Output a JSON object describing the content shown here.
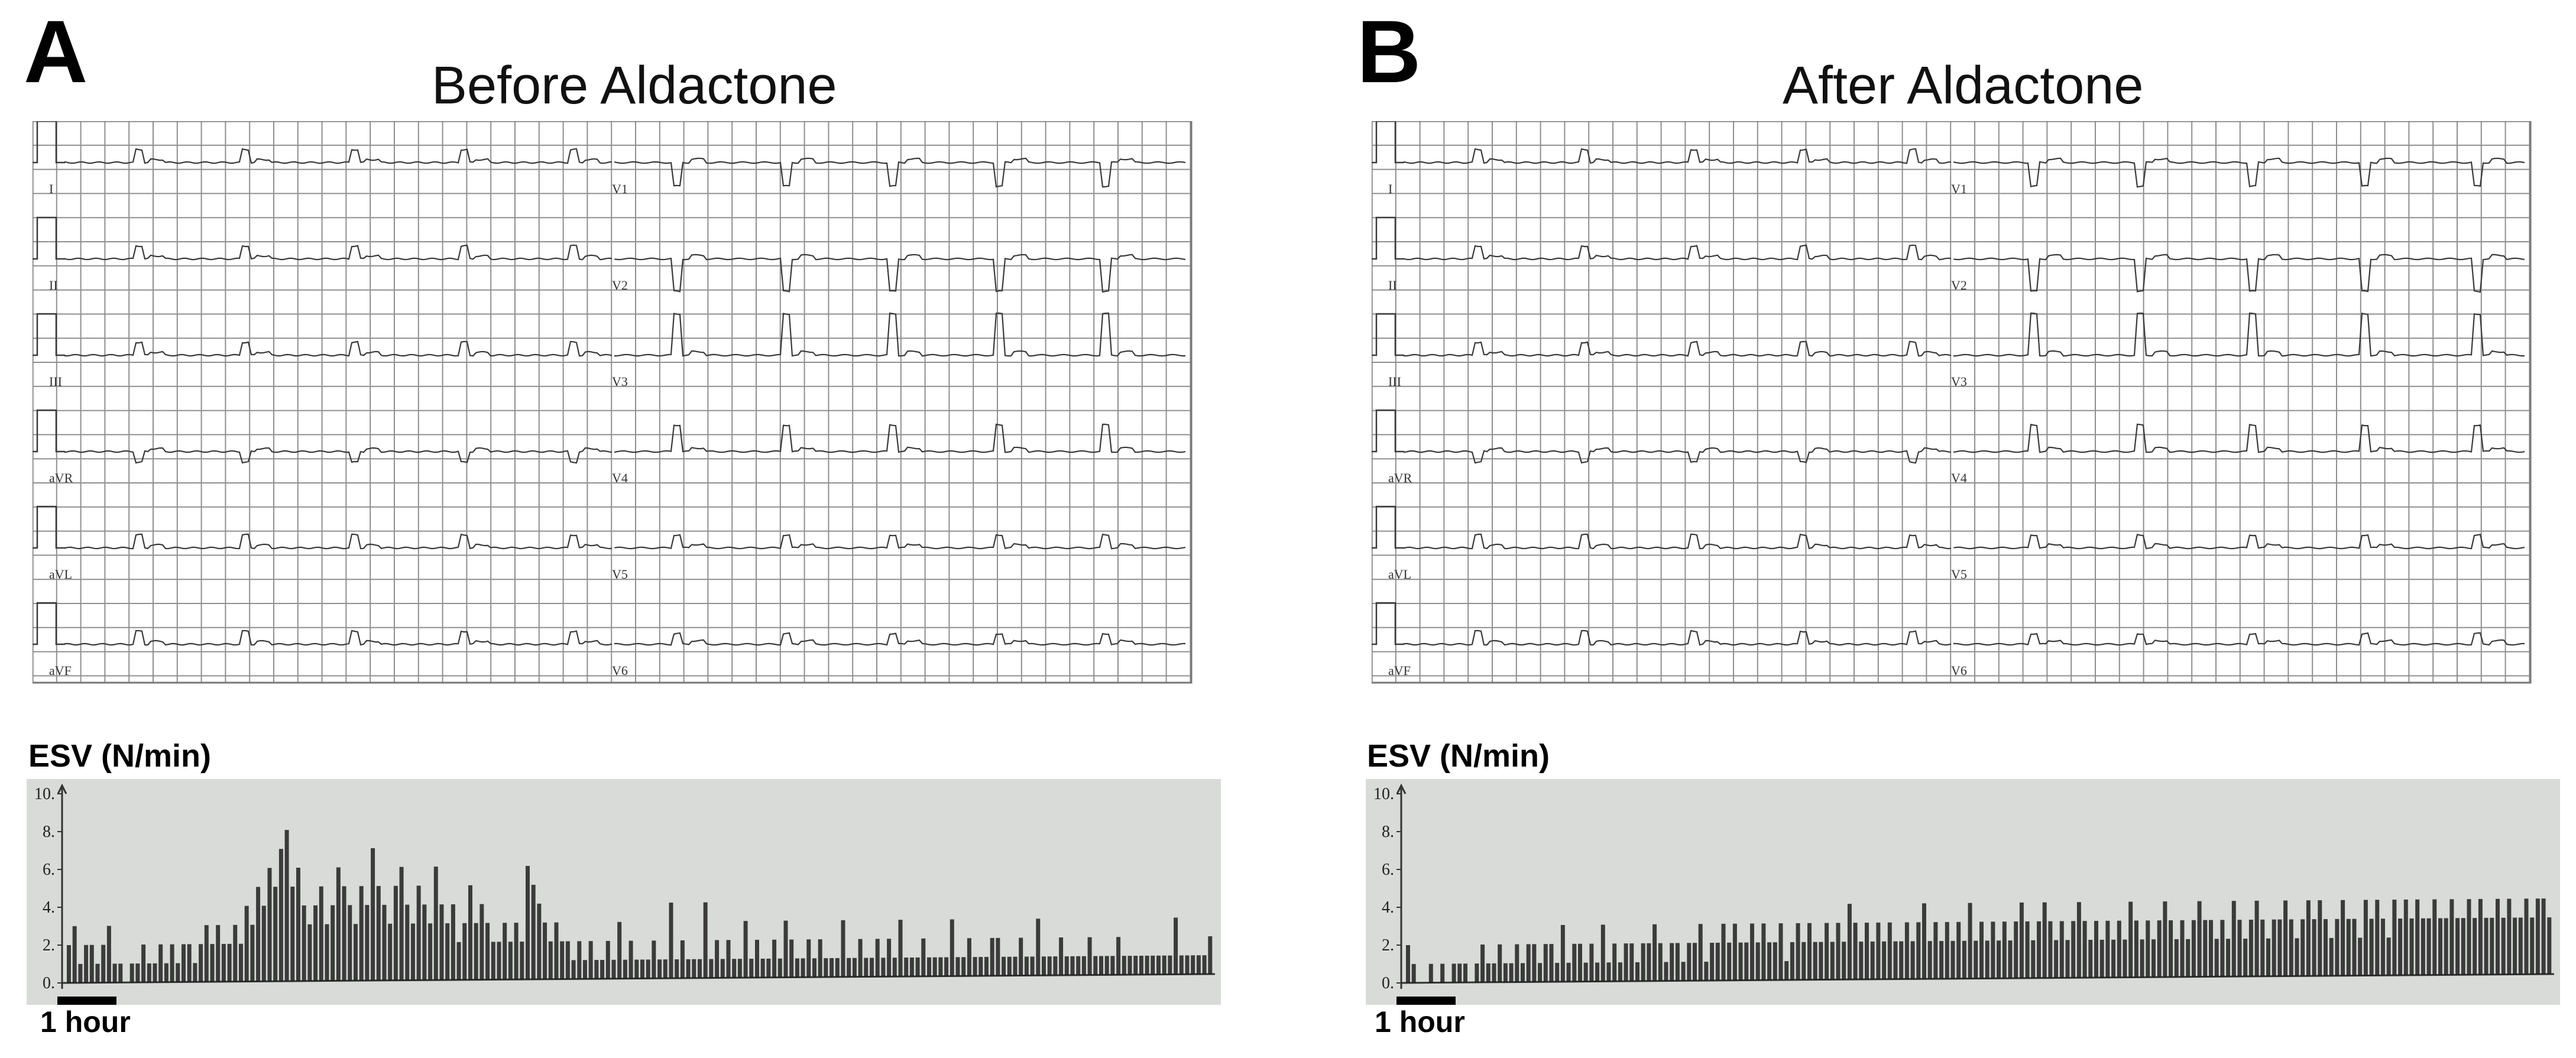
{
  "panels": [
    {
      "letter": "A",
      "title": "Before Aldactone",
      "ecg_leads_left": [
        "I",
        "II",
        "III",
        "aVR",
        "aVL",
        "aVF"
      ],
      "ecg_leads_right": [
        "V1",
        "V2",
        "V3",
        "V4",
        "V5",
        "V6"
      ],
      "esv_label": "ESV (N/min)",
      "scale_bar_label": "1 hour"
    },
    {
      "letter": "B",
      "title": "After Aldactone",
      "ecg_leads_left": [
        "I",
        "II",
        "III",
        "aVR",
        "aVL",
        "aVF"
      ],
      "ecg_leads_right": [
        "V1",
        "V2",
        "V3",
        "V4",
        "V5",
        "V6"
      ],
      "esv_label": "ESV (N/min)",
      "scale_bar_label": "1 hour"
    }
  ],
  "colors": {
    "grid": "#8f8f8f",
    "trace": "#3a3a3a",
    "esv_background": "#d8dbd8",
    "esv_bars": "#1e1e1e"
  },
  "chart_data": [
    {
      "type": "bar",
      "panel": "A",
      "ylabel": "ESV (N/min)",
      "ylim": [
        0,
        10
      ],
      "yticks": [
        "0.",
        "2.",
        "4.",
        "6.",
        "8.",
        "10."
      ],
      "series": [
        {
          "values": [
            2,
            3,
            1,
            2,
            2,
            1,
            2,
            3,
            1,
            1,
            0,
            1,
            1,
            2,
            1,
            1,
            2,
            1,
            2,
            1,
            2,
            2,
            1,
            2,
            3,
            2,
            3,
            2,
            2,
            3,
            2,
            4,
            3,
            5,
            4,
            6,
            5,
            7,
            8,
            5,
            6,
            4,
            3,
            4,
            5,
            3,
            4,
            6,
            5,
            4,
            3,
            5,
            4,
            7,
            5,
            4,
            3,
            5,
            6,
            4,
            3,
            5,
            4,
            3,
            6,
            4,
            3,
            4,
            2,
            3,
            5,
            3,
            4,
            3,
            2,
            2,
            3,
            2,
            3,
            2,
            6,
            5,
            4,
            3,
            2,
            3,
            2,
            2,
            1,
            2,
            1,
            2,
            1,
            1,
            2,
            1,
            3,
            1,
            2,
            1,
            1,
            1,
            2,
            1,
            1,
            4,
            1,
            2,
            1,
            1,
            1,
            4,
            1,
            2,
            1,
            2,
            1,
            1,
            3,
            1,
            2,
            1,
            1,
            2,
            1,
            3,
            2,
            1,
            1,
            2,
            1,
            2,
            1,
            1,
            1,
            3,
            1,
            1,
            2,
            1,
            1,
            2,
            1,
            2,
            1,
            3,
            1,
            1,
            1,
            2,
            1,
            1,
            1,
            1,
            3,
            1,
            1,
            2,
            1,
            1,
            1,
            2,
            2,
            1,
            1,
            1,
            2,
            1,
            1,
            3,
            1,
            1,
            1,
            2,
            1,
            1,
            1,
            1,
            2,
            1,
            1,
            1,
            1,
            2,
            1,
            1,
            1,
            1,
            1,
            1,
            1,
            1,
            1,
            3,
            1,
            1,
            1,
            1,
            1,
            2
          ]
        }
      ]
    },
    {
      "type": "bar",
      "panel": "B",
      "ylabel": "ESV (N/min)",
      "ylim": [
        0,
        10
      ],
      "yticks": [
        "0.",
        "2.",
        "4.",
        "6.",
        "8.",
        "10."
      ],
      "series": [
        {
          "values": [
            2,
            1,
            0,
            0,
            1,
            0,
            1,
            0,
            1,
            1,
            1,
            0,
            1,
            2,
            1,
            1,
            2,
            1,
            1,
            2,
            1,
            2,
            2,
            1,
            2,
            2,
            1,
            3,
            1,
            2,
            2,
            1,
            2,
            1,
            3,
            1,
            2,
            1,
            2,
            2,
            1,
            2,
            2,
            3,
            2,
            1,
            2,
            2,
            1,
            2,
            2,
            3,
            1,
            2,
            2,
            3,
            2,
            3,
            2,
            2,
            3,
            2,
            3,
            2,
            2,
            3,
            1,
            2,
            3,
            2,
            3,
            2,
            2,
            3,
            2,
            3,
            2,
            4,
            3,
            2,
            3,
            2,
            3,
            2,
            3,
            2,
            2,
            3,
            2,
            3,
            4,
            2,
            3,
            2,
            3,
            2,
            3,
            2,
            4,
            2,
            3,
            2,
            3,
            2,
            3,
            2,
            3,
            4,
            3,
            2,
            3,
            4,
            3,
            2,
            3,
            2,
            3,
            4,
            3,
            2,
            3,
            2,
            3,
            2,
            3,
            2,
            4,
            3,
            2,
            3,
            2,
            3,
            4,
            3,
            2,
            3,
            2,
            3,
            4,
            3,
            3,
            2,
            3,
            2,
            4,
            3,
            2,
            3,
            4,
            3,
            2,
            3,
            3,
            4,
            3,
            2,
            3,
            4,
            3,
            4,
            3,
            2,
            3,
            4,
            3,
            3,
            2,
            4,
            3,
            4,
            3,
            2,
            4,
            3,
            4,
            3,
            4,
            3,
            3,
            4,
            3,
            3,
            4,
            3,
            3,
            4,
            3,
            4,
            3,
            3,
            4,
            3,
            4,
            3,
            3,
            4,
            3,
            4,
            4,
            3
          ]
        }
      ]
    }
  ]
}
